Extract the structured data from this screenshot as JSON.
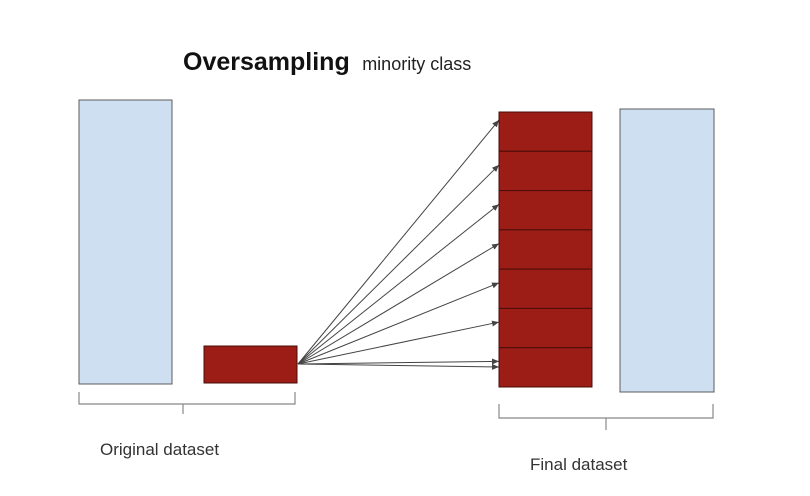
{
  "title": {
    "bold": "Oversampling",
    "light": "minority class"
  },
  "labels": {
    "original": "Original dataset",
    "final": "Final dataset"
  },
  "colors": {
    "majority_fill": "#cfdff2",
    "majority_stroke": "#5b5b5b",
    "minority_fill": "#9c1d15",
    "minority_stroke": "#4a0d09"
  },
  "minority_copies": 7
}
